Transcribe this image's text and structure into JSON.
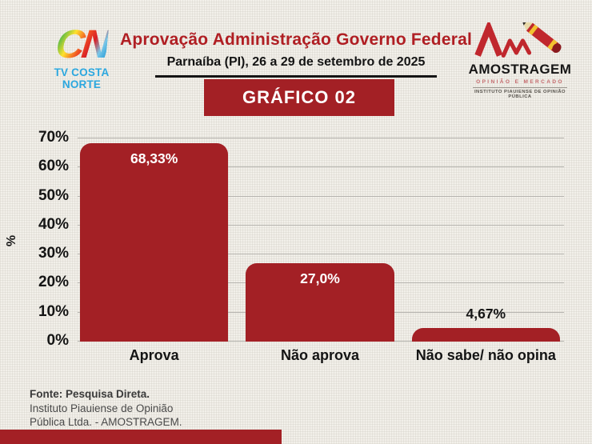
{
  "header": {
    "brand_left": {
      "monogram": "CN",
      "name": "TV COSTA NORTE"
    },
    "title": "Aprovação Administração Governo Federal",
    "subtitle": "Parnaíba (PI), 26 a 29 de setembro de 2025",
    "badge": "GRÁFICO 02",
    "brand_right": {
      "name": "AMOSTRAGEM",
      "tagline": "OPINIÃO E MERCADO",
      "subtext": "INSTITUTO PIAUIENSE DE OPINIÃO PÚBLICA"
    }
  },
  "chart_data": {
    "type": "bar",
    "title": "GRÁFICO 02",
    "categories": [
      "Aprova",
      "Não aprova",
      "Não sabe/ não opina"
    ],
    "values": [
      68.33,
      27.0,
      4.67
    ],
    "value_labels": [
      "68,33%",
      "27,0%",
      "4,67%"
    ],
    "xlabel": "",
    "ylabel": "%",
    "ylim": [
      0,
      70
    ],
    "ytick_step": 10,
    "yticks": [
      "0%",
      "10%",
      "20%",
      "30%",
      "40%",
      "50%",
      "60%",
      "70%"
    ],
    "grid": true,
    "legend": "none",
    "bar_color": "#a32025",
    "value_label_inside_color": "#ffffff",
    "value_label_outside_color": "#141414"
  },
  "footer": {
    "line1": "Fonte: Pesquisa Direta.",
    "line2": "Instituto Piauiense de Opinião",
    "line3": "Pública Ltda. - AMOSTRAGEM."
  },
  "colors": {
    "accent_red": "#a32025",
    "title_red": "#b01e23",
    "brand_blue": "#2ba7df",
    "background": "#f2f0ea",
    "gridline": "#b5b3ae"
  }
}
